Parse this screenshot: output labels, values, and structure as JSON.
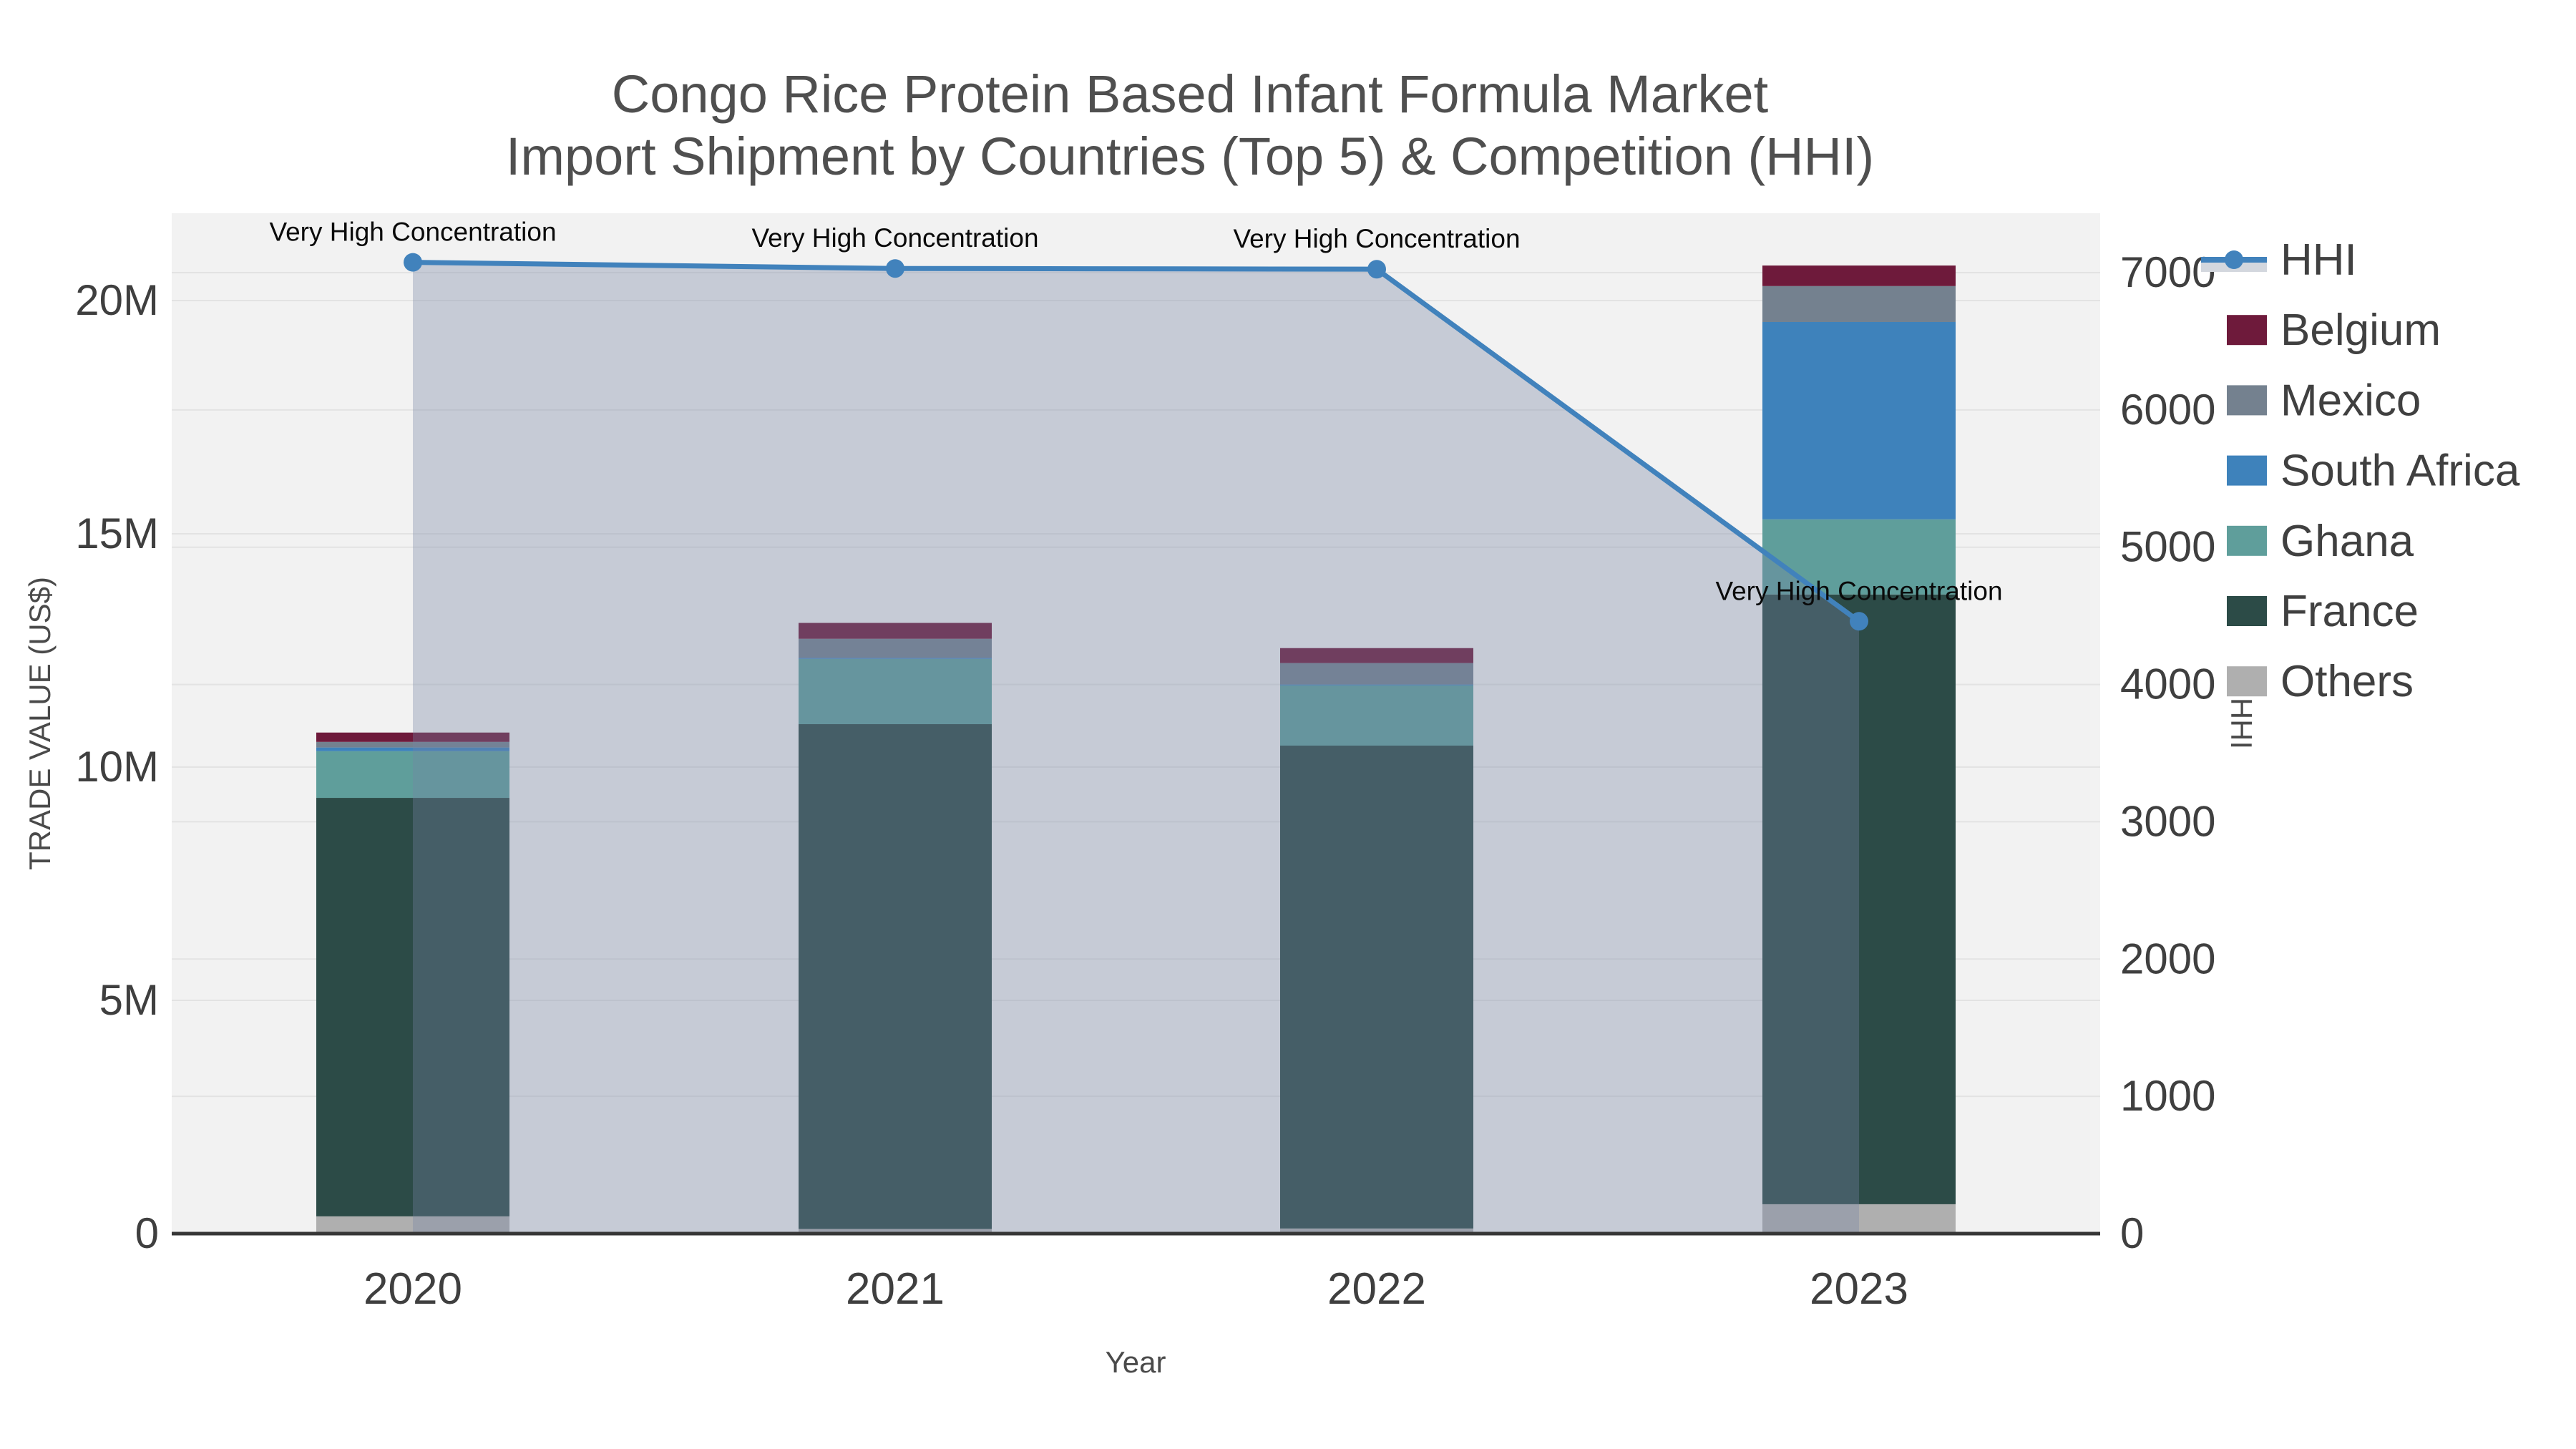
{
  "title": {
    "line1": "Congo Rice Protein Based Infant Formula Market",
    "line2": "Import Shipment by Countries (Top 5) & Competition (HHI)"
  },
  "chart_data": {
    "type": "bar+line",
    "title": "Congo Rice Protein Based Infant Formula Market Import Shipment by Countries (Top 5) & Competition (HHI)",
    "categories": [
      "2020",
      "2021",
      "2022",
      "2023"
    ],
    "bar_value_unit": "million US$",
    "stack_order_bottom_to_top": [
      "Others",
      "France",
      "Ghana",
      "South Africa",
      "Mexico",
      "Belgium"
    ],
    "series": [
      {
        "name": "Others",
        "values": [
          0.37,
          0.1,
          0.11,
          0.63
        ],
        "color": "#AFAFAF"
      },
      {
        "name": "France",
        "values": [
          8.97,
          10.82,
          10.35,
          13.07
        ],
        "color": "#2C4B47"
      },
      {
        "name": "Ghana",
        "values": [
          1.0,
          1.4,
          1.29,
          1.61
        ],
        "color": "#5F9E9B"
      },
      {
        "name": "South Africa",
        "values": [
          0.08,
          0.02,
          0.02,
          4.23
        ],
        "color": "#3E82BB"
      },
      {
        "name": "Mexico",
        "values": [
          0.12,
          0.41,
          0.46,
          0.77
        ],
        "color": "#74818F"
      },
      {
        "name": "Belgium",
        "values": [
          0.2,
          0.34,
          0.32,
          0.44
        ],
        "color": "#6E1A3B"
      }
    ],
    "bar_totals_M": [
      10.74,
      13.09,
      12.55,
      20.75
    ],
    "hhi": {
      "name": "HHI",
      "values": [
        7075,
        7030,
        7025,
        4460
      ],
      "line_color": "#4182BC",
      "area_fill": "rgba(118,132,162,0.35)",
      "legend_band_color": "#D3D7DE"
    },
    "annotations": [
      {
        "text": "Very High Concentration",
        "index": 0
      },
      {
        "text": "Very High Concentration",
        "index": 1
      },
      {
        "text": "Very High Concentration",
        "index": 2
      },
      {
        "text": "Very High Concentration",
        "index": 3
      }
    ],
    "x_axis": {
      "title": "Year",
      "tick_labels": [
        "2020",
        "2021",
        "2022",
        "2023"
      ]
    },
    "left_axis": {
      "title": "TRADE VALUE (US$)",
      "tick_values_M": [
        0,
        5,
        10,
        15,
        20
      ],
      "tick_labels": [
        "0",
        "5M",
        "10M",
        "15M",
        "20M"
      ],
      "range_M": [
        0,
        21.9
      ]
    },
    "right_axis": {
      "title": "HHI",
      "tick_values": [
        0,
        1000,
        2000,
        3000,
        4000,
        5000,
        6000,
        7000
      ],
      "tick_labels": [
        "0",
        "1000",
        "2000",
        "3000",
        "4000",
        "5000",
        "6000",
        "7000"
      ],
      "range": [
        0,
        7510
      ]
    },
    "legend_order": [
      "HHI",
      "Belgium",
      "Mexico",
      "South Africa",
      "Ghana",
      "France",
      "Others"
    ],
    "layout_hints": {
      "grid": "on",
      "legend_position": "right",
      "plot_bg": "#F2F2F2"
    },
    "colors": {
      "plot_bg": "#F2F2F2",
      "grid": "#E3E3E3",
      "axis_line": "#363636",
      "tick_text": "#3F3F3F",
      "title_text": "#4F4F4F",
      "annotation_text": "#0A0A0A",
      "legend_text": "#404040",
      "axis_title_text": "#4A4A4A"
    }
  }
}
